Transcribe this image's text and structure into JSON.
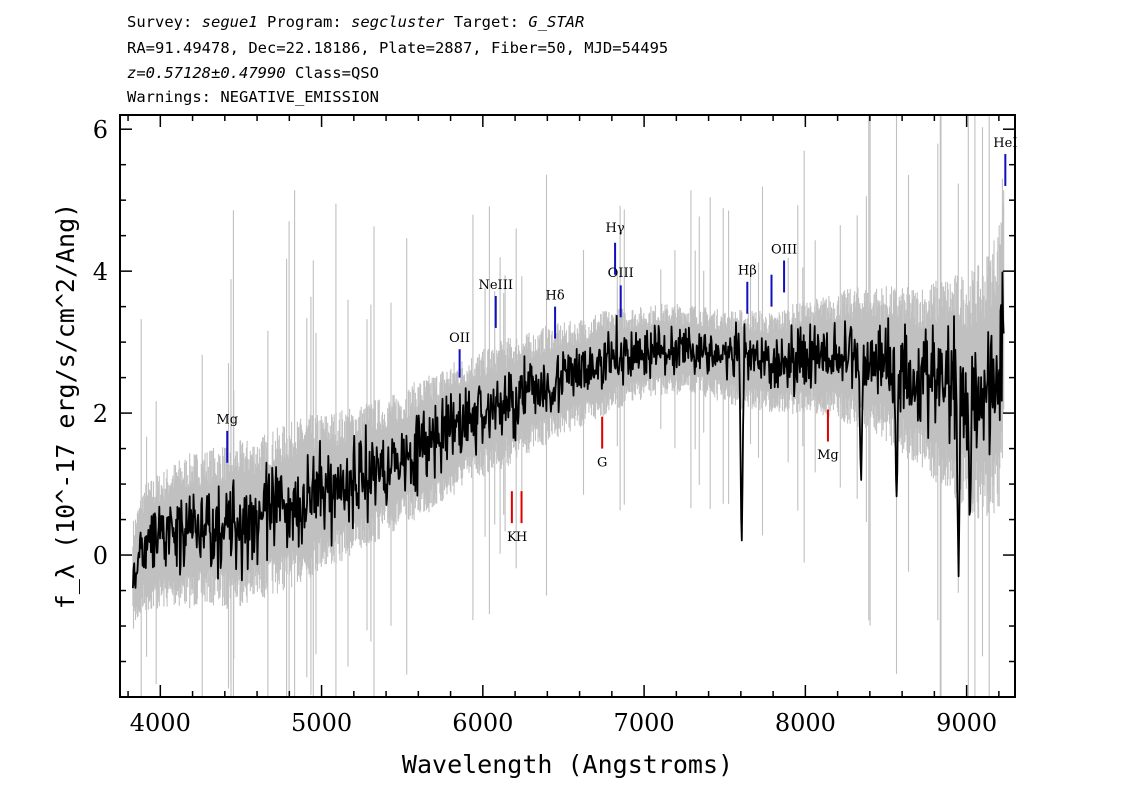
{
  "header": {
    "line1": {
      "survey_label": "Survey:",
      "survey": "segue1",
      "program_label": "Program:",
      "program": "segcluster",
      "target_label": "Target:",
      "target": "G_STAR"
    },
    "line2": "RA=91.49478, Dec=22.18186, Plate=2887, Fiber=50, MJD=54495",
    "line3": {
      "z": "z=0.57128±0.47990",
      "class": "Class=QSO"
    },
    "line4": "Warnings: NEGATIVE_EMISSION"
  },
  "chart_data": {
    "type": "line",
    "xlabel": "Wavelength (Angstroms)",
    "ylabel": "f_λ (10^-17 erg/s/cm^2/Ang)",
    "xlim": [
      3750,
      9300
    ],
    "ylim": [
      -2.0,
      6.2
    ],
    "x_ticks": [
      4000,
      5000,
      6000,
      7000,
      8000,
      9000
    ],
    "x_tick_labels": [
      "4000",
      "5000",
      "6000",
      "7000",
      "8000",
      "9000"
    ],
    "y_ticks": [
      0,
      2,
      4,
      6
    ],
    "y_tick_labels": [
      "0",
      "2",
      "4",
      "6"
    ],
    "grid": false,
    "series": [
      {
        "role": "error",
        "color": "#c0c0c0",
        "x": [
          3830,
          3900,
          4000,
          4100,
          4200,
          4300,
          4400,
          4500,
          4600,
          4700,
          4800,
          4900,
          5000,
          5100,
          5200,
          5300,
          5400,
          5500,
          5600,
          5700,
          5800,
          5900,
          6000,
          6100,
          6200,
          6300,
          6400,
          6500,
          6600,
          6700,
          6800,
          6900,
          7000,
          7100,
          7200,
          7300,
          7400,
          7500,
          7600,
          7700,
          7800,
          7900,
          8000,
          8100,
          8200,
          8300,
          8400,
          8500,
          8600,
          8700,
          8800,
          8900,
          9000,
          9100,
          9200,
          9230
        ],
        "y": [
          0.6,
          0.7,
          0.75,
          0.8,
          0.85,
          0.85,
          0.9,
          0.9,
          0.9,
          0.9,
          0.9,
          0.9,
          0.85,
          0.85,
          0.8,
          0.8,
          0.75,
          0.75,
          0.75,
          0.75,
          0.75,
          0.7,
          0.7,
          0.7,
          0.7,
          0.65,
          0.65,
          0.6,
          0.6,
          0.6,
          0.55,
          0.55,
          0.5,
          0.5,
          0.5,
          0.5,
          0.5,
          0.5,
          0.55,
          0.55,
          0.55,
          0.6,
          0.6,
          0.65,
          0.7,
          0.75,
          0.8,
          0.85,
          0.9,
          1.0,
          1.1,
          1.2,
          1.3,
          1.4,
          1.6,
          1.7
        ]
      },
      {
        "role": "flux",
        "color": "#000000",
        "x": [
          3830,
          3900,
          4000,
          4100,
          4200,
          4300,
          4400,
          4500,
          4600,
          4700,
          4800,
          4900,
          5000,
          5100,
          5200,
          5300,
          5400,
          5500,
          5600,
          5700,
          5800,
          5900,
          6000,
          6100,
          6200,
          6300,
          6400,
          6500,
          6600,
          6700,
          6800,
          6900,
          7000,
          7100,
          7200,
          7300,
          7400,
          7500,
          7600,
          7700,
          7800,
          7900,
          8000,
          8100,
          8200,
          8300,
          8400,
          8500,
          8600,
          8700,
          8800,
          8900,
          9000,
          9100,
          9200,
          9230
        ],
        "y": [
          -0.3,
          0.1,
          0.2,
          0.3,
          0.35,
          0.4,
          0.4,
          0.45,
          0.5,
          0.6,
          0.7,
          0.8,
          0.9,
          0.95,
          1.05,
          1.15,
          1.25,
          1.35,
          1.5,
          1.6,
          1.75,
          1.9,
          2.0,
          2.1,
          2.2,
          2.3,
          2.4,
          2.5,
          2.55,
          2.65,
          2.75,
          2.8,
          2.85,
          2.9,
          2.9,
          2.9,
          2.85,
          2.8,
          2.75,
          2.75,
          2.7,
          2.75,
          2.8,
          2.8,
          2.8,
          2.8,
          2.75,
          2.7,
          2.6,
          2.5,
          2.45,
          2.4,
          2.3,
          2.3,
          2.6,
          3.6
        ]
      }
    ],
    "absorption_dips": [
      {
        "x": 7605,
        "y": 0.0
      },
      {
        "x": 8345,
        "y": 0.9
      },
      {
        "x": 8565,
        "y": 0.7
      },
      {
        "x": 8950,
        "y": -0.3
      },
      {
        "x": 9020,
        "y": 0.4
      }
    ],
    "emission_lines": [
      {
        "label": "Mg",
        "x": 4415,
        "y1": 1.3,
        "y2": 1.75,
        "label_y": 1.85
      },
      {
        "label": "OII",
        "x": 5856,
        "y1": 2.5,
        "y2": 2.9,
        "label_y": 3.0
      },
      {
        "label": "NeIII",
        "x": 6080,
        "y1": 3.2,
        "y2": 3.65,
        "label_y": 3.75
      },
      {
        "label": "Hδ",
        "x": 6448,
        "y1": 3.05,
        "y2": 3.5,
        "label_y": 3.6
      },
      {
        "label": "Hγ",
        "x": 6820,
        "y1": 3.95,
        "y2": 4.4,
        "label_y": 4.55
      },
      {
        "label": "OIII",
        "x": 6855,
        "y1": 3.35,
        "y2": 3.8,
        "label_y": 3.92
      },
      {
        "label": "Hβ",
        "x": 7640,
        "y1": 3.4,
        "y2": 3.85,
        "label_y": 3.95
      },
      {
        "label": "",
        "x": 7790,
        "y1": 3.5,
        "y2": 3.95
      },
      {
        "label": "OIII",
        "x": 7868,
        "y1": 3.7,
        "y2": 4.15,
        "label_y": 4.25
      },
      {
        "label": "HeI",
        "x": 9240,
        "y1": 5.2,
        "y2": 5.65,
        "label_y": 5.75
      }
    ],
    "absorption_lines": [
      {
        "label": "K",
        "x": 6180,
        "y1": 0.45,
        "y2": 0.9,
        "label_y": 0.2
      },
      {
        "label": "H",
        "x": 6240,
        "y1": 0.45,
        "y2": 0.9,
        "label_y": 0.2
      },
      {
        "label": "G",
        "x": 6740,
        "y1": 1.5,
        "y2": 1.95,
        "label_y": 1.25
      },
      {
        "label": "Mg",
        "x": 8140,
        "y1": 1.6,
        "y2": 2.05,
        "label_y": 1.35
      }
    ],
    "emission_color": "#1010c0",
    "absorption_color": "#e00000"
  }
}
